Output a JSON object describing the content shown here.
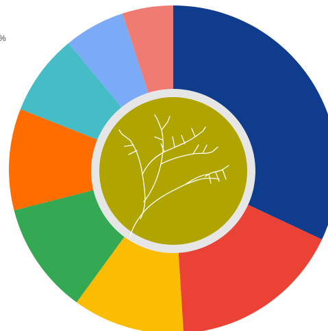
{
  "chart_data": {
    "type": "donut",
    "annotation": "%",
    "values": [
      32,
      17,
      11,
      11,
      10,
      8,
      6,
      5
    ],
    "colors": [
      "#0f3c8c",
      "#ea4335",
      "#fbbc04",
      "#34a853",
      "#ff6d01",
      "#46bdc6",
      "#7baaf7",
      "#f07b72"
    ],
    "center_color": "#b0a500"
  }
}
